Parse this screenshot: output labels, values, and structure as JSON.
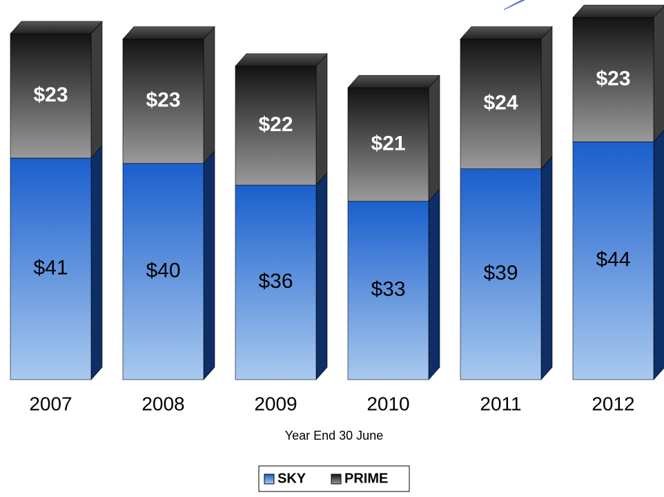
{
  "chart_data": {
    "type": "bar",
    "stacked": true,
    "x_label": "Year End 30 June",
    "categories": [
      "2007",
      "2008",
      "2009",
      "2010",
      "2011",
      "2012"
    ],
    "series": [
      {
        "name": "SKY",
        "color": "#1a5fcc",
        "values": [
          41,
          40,
          36,
          33,
          39,
          44
        ],
        "value_labels": [
          "$41",
          "$40",
          "$36",
          "$33",
          "$39",
          "$44"
        ]
      },
      {
        "name": "PRIME",
        "color": "#9a9a9a",
        "values": [
          23,
          23,
          22,
          21,
          24,
          23
        ],
        "value_labels": [
          "$23",
          "$23",
          "$22",
          "$21",
          "$24",
          "$23"
        ]
      }
    ],
    "legend": "bottom"
  }
}
